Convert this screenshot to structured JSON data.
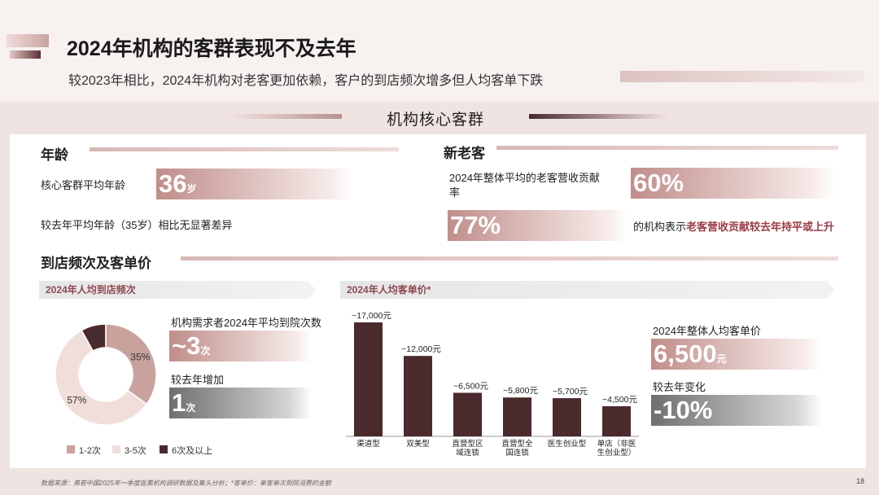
{
  "header": {
    "title": "2024年机构的客群表现不及去年",
    "subtitle": "较2023年相比，2024年机构对老客更加依赖，客户的到店频次增多但人均客单下跌"
  },
  "section_title": "机构核心客群",
  "age": {
    "heading": "年龄",
    "avg_label": "核心客群平均年龄",
    "avg_value": "36",
    "avg_unit": "岁",
    "compare_text": "较去年平均年龄（35岁）相比无显著差异"
  },
  "customers": {
    "heading": "新老客",
    "label": "2024年整体平均的老客营收贡献率",
    "value_share": "77%",
    "value_orgs": "60%",
    "note_prefix": "的机构表示",
    "note_highlight": "老客营收贡献较去年持平或上升"
  },
  "visits": {
    "heading": "到店频次及客单价",
    "freq_pill": "2024年人均到店频次",
    "freq_label": "机构需求者2024年平均到院次数",
    "freq_value": "~3",
    "freq_unit": "次",
    "increase_label": "较去年增加",
    "increase_value": "1",
    "increase_unit": "次"
  },
  "price": {
    "pill": "2024年人均客单价*",
    "overall_label": "2024年整体人均客单价",
    "overall_value": "6,500",
    "overall_unit": "元",
    "change_label": "较去年变化",
    "change_value": "-10%"
  },
  "chart_data": [
    {
      "type": "pie",
      "labels": [
        "1-2次",
        "3-5次",
        "6次及以上"
      ],
      "values": [
        35,
        57,
        8
      ],
      "value_labels": [
        "35%",
        "57%",
        "8%"
      ],
      "colors": [
        "#c9a29e",
        "#f1dedb",
        "#4a2a2d"
      ],
      "donut": true,
      "legend": "bottom"
    },
    {
      "type": "bar",
      "categories": [
        [
          "渠道型"
        ],
        [
          "双美型"
        ],
        [
          "直营型区",
          "域连锁"
        ],
        [
          "直营型全",
          "国连锁"
        ],
        [
          "医生创业型"
        ],
        [
          "单店（非医",
          "生创业型）"
        ]
      ],
      "values": [
        17000,
        12000,
        6500,
        5800,
        5700,
        4500
      ],
      "value_labels": [
        "~17,000元",
        "~12,000元",
        "~6,500元",
        "~5,800元",
        "~5,700元",
        "~4,500元"
      ],
      "ylim": [
        0,
        17000
      ],
      "color": "#4a2a2d",
      "grid": false
    }
  ],
  "footer": {
    "source": "数据来源：弗若中国2025年一季度医美机构调研数据及集头分析；*客单价：单客单次到院消费的金额",
    "page": "18"
  }
}
